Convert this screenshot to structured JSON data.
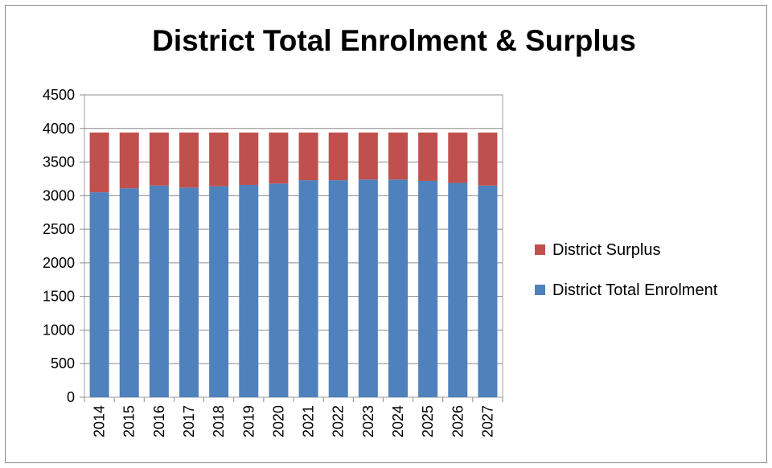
{
  "chart_data": {
    "type": "bar",
    "stacked": true,
    "title": "District Total Enrolment & Surplus",
    "categories": [
      "2014",
      "2015",
      "2016",
      "2017",
      "2018",
      "2019",
      "2020",
      "2021",
      "2022",
      "2023",
      "2024",
      "2025",
      "2026",
      "2027"
    ],
    "series": [
      {
        "name": "District Total Enrolment",
        "color": "#4f81bd",
        "values": [
          3050,
          3110,
          3150,
          3120,
          3140,
          3160,
          3180,
          3230,
          3230,
          3240,
          3240,
          3220,
          3190,
          3150
        ]
      },
      {
        "name": "District Surplus",
        "color": "#c0504d",
        "values": [
          890,
          830,
          790,
          820,
          800,
          780,
          760,
          710,
          710,
          700,
          700,
          720,
          750,
          790
        ]
      }
    ],
    "ylim": [
      0,
      4500
    ],
    "yticks": [
      0,
      500,
      1000,
      1500,
      2000,
      2500,
      3000,
      3500,
      4000,
      4500
    ],
    "grid": true,
    "legend_position": "right",
    "legend_order": [
      "District Surplus",
      "District Total Enrolment"
    ]
  }
}
